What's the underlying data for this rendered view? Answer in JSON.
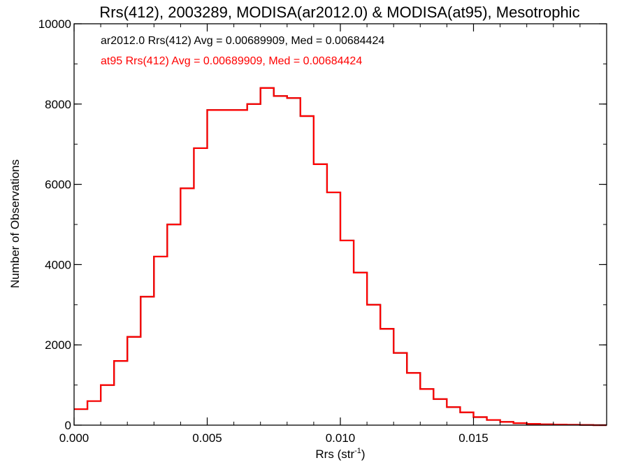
{
  "chart_data": {
    "type": "histogram",
    "title": "Rrs(412), 2003289, MODISA(ar2012.0) & MODISA(at95), Mesotrophic",
    "xlabel": "Rrs (str",
    "xlabel_sup": "-1",
    "xlabel_close": ")",
    "ylabel": "Number of Observations",
    "xlim": [
      0.0,
      0.02
    ],
    "ylim": [
      0,
      10000
    ],
    "xticks": [
      {
        "value": 0.0,
        "label": "0.000"
      },
      {
        "value": 0.005,
        "label": "0.005"
      },
      {
        "value": 0.01,
        "label": "0.010"
      },
      {
        "value": 0.015,
        "label": "0.015"
      }
    ],
    "yticks": [
      {
        "value": 0,
        "label": "0"
      },
      {
        "value": 2000,
        "label": "2000"
      },
      {
        "value": 4000,
        "label": "4000"
      },
      {
        "value": 6000,
        "label": "6000"
      },
      {
        "value": 8000,
        "label": "8000"
      },
      {
        "value": 10000,
        "label": "10000"
      }
    ],
    "x_minor_step": 0.001,
    "y_minor_step": 1000,
    "annotations": [
      {
        "text": "ar2012.0 Rrs(412) Avg = 0.00689909, Med = 0.00684424",
        "color": "#000000"
      },
      {
        "text": "at95 Rrs(412) Avg = 0.00689909, Med = 0.00684424",
        "color": "#ff0000"
      }
    ],
    "series": [
      {
        "name": "ar2012.0",
        "color": "#000000",
        "x": [
          0.0,
          0.0005,
          0.001,
          0.0015,
          0.002,
          0.0025,
          0.003,
          0.0035,
          0.004,
          0.0045,
          0.005,
          0.0055,
          0.006,
          0.0065,
          0.007,
          0.0075,
          0.008,
          0.0085,
          0.009,
          0.0095,
          0.01,
          0.0105,
          0.011,
          0.0115,
          0.012,
          0.0125,
          0.013,
          0.0135,
          0.014,
          0.0145,
          0.015,
          0.0155,
          0.016,
          0.0165,
          0.017,
          0.0175,
          0.018,
          0.0185,
          0.019,
          0.0195,
          0.02
        ],
        "y": [
          400,
          600,
          1000,
          1600,
          2200,
          3200,
          4200,
          5000,
          5900,
          6900,
          7850,
          7850,
          7850,
          8000,
          8400,
          8200,
          8150,
          7700,
          6500,
          5800,
          4600,
          3800,
          3000,
          2400,
          1800,
          1300,
          900,
          650,
          450,
          320,
          200,
          130,
          80,
          50,
          30,
          20,
          15,
          10,
          5,
          0,
          0
        ]
      },
      {
        "name": "at95",
        "color": "#ff0000",
        "x": [
          0.0,
          0.0005,
          0.001,
          0.0015,
          0.002,
          0.0025,
          0.003,
          0.0035,
          0.004,
          0.0045,
          0.005,
          0.0055,
          0.006,
          0.0065,
          0.007,
          0.0075,
          0.008,
          0.0085,
          0.009,
          0.0095,
          0.01,
          0.0105,
          0.011,
          0.0115,
          0.012,
          0.0125,
          0.013,
          0.0135,
          0.014,
          0.0145,
          0.015,
          0.0155,
          0.016,
          0.0165,
          0.017,
          0.0175,
          0.018,
          0.0185,
          0.019,
          0.0195,
          0.02
        ],
        "y": [
          400,
          600,
          1000,
          1600,
          2200,
          3200,
          4200,
          5000,
          5900,
          6900,
          7850,
          7850,
          7850,
          8000,
          8400,
          8200,
          8150,
          7700,
          6500,
          5800,
          4600,
          3800,
          3000,
          2400,
          1800,
          1300,
          900,
          650,
          450,
          320,
          200,
          130,
          80,
          50,
          30,
          20,
          15,
          10,
          5,
          0,
          0
        ]
      }
    ]
  }
}
